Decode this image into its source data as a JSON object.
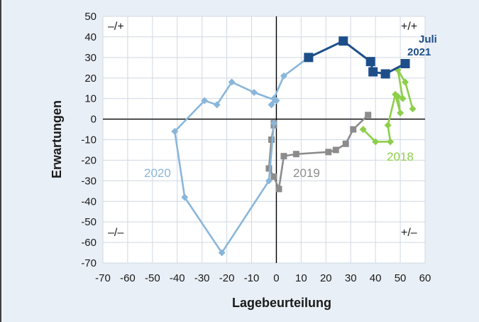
{
  "chart_data": {
    "type": "line",
    "xlabel": "Lagebeurteilung",
    "ylabel": "Erwartungen",
    "xlim": [
      -70,
      60
    ],
    "ylim": [
      -70,
      50
    ],
    "x_ticks": [
      "-70",
      "-60",
      "-50",
      "-40",
      "-30",
      "-20",
      "-10",
      "0",
      "10",
      "20",
      "30",
      "40",
      "50",
      "60"
    ],
    "y_ticks": [
      "50",
      "40",
      "30",
      "20",
      "10",
      "0",
      "-10",
      "-20",
      "-30",
      "-40",
      "-50",
      "-60",
      "-70"
    ],
    "grid": true,
    "quadrant_labels": {
      "top_left": "–/+",
      "top_right": "+/+",
      "bottom_left": "–/–",
      "bottom_right": "+/–"
    },
    "annotation": {
      "line1": "Juli",
      "line2": "2021"
    },
    "series": [
      {
        "name": "2018",
        "color": "#8dcf4a",
        "marker": "diamond",
        "points": [
          [
            55,
            5
          ],
          [
            52,
            18
          ],
          [
            49,
            24
          ],
          [
            51,
            10
          ],
          [
            49,
            11
          ],
          [
            50,
            3
          ],
          [
            48,
            12
          ],
          [
            45,
            -3
          ],
          [
            46,
            -11
          ],
          [
            40,
            -11
          ],
          [
            35,
            -5
          ]
        ]
      },
      {
        "name": "2019",
        "color": "#8c8c8c",
        "marker": "square",
        "points": [
          [
            37,
            2
          ],
          [
            31,
            -5
          ],
          [
            28,
            -12
          ],
          [
            24,
            -15
          ],
          [
            21,
            -16
          ],
          [
            8,
            -17
          ],
          [
            3,
            -18
          ],
          [
            1,
            -34
          ],
          [
            -1,
            -28
          ],
          [
            -3,
            -24
          ],
          [
            -2,
            -10
          ],
          [
            -1,
            -3
          ],
          [
            -1,
            -2
          ]
        ]
      },
      {
        "name": "2020",
        "color": "#8ab6da",
        "marker": "diamond",
        "points": [
          [
            -1,
            -2
          ],
          [
            -3,
            -30
          ],
          [
            -22,
            -65
          ],
          [
            -37,
            -38
          ],
          [
            -41,
            -6
          ],
          [
            -29,
            9
          ],
          [
            -24,
            7
          ],
          [
            -18,
            18
          ],
          [
            -9,
            13
          ],
          [
            0,
            9
          ],
          [
            -2,
            7
          ],
          [
            -1,
            10
          ],
          [
            3,
            21
          ],
          [
            13,
            30
          ]
        ]
      },
      {
        "name": "",
        "color": "#1d4e89",
        "marker": "square",
        "points": [
          [
            13,
            30
          ],
          [
            27,
            38
          ],
          [
            38,
            28
          ],
          [
            39,
            23
          ],
          [
            44,
            22
          ],
          [
            52,
            27
          ]
        ]
      }
    ]
  }
}
